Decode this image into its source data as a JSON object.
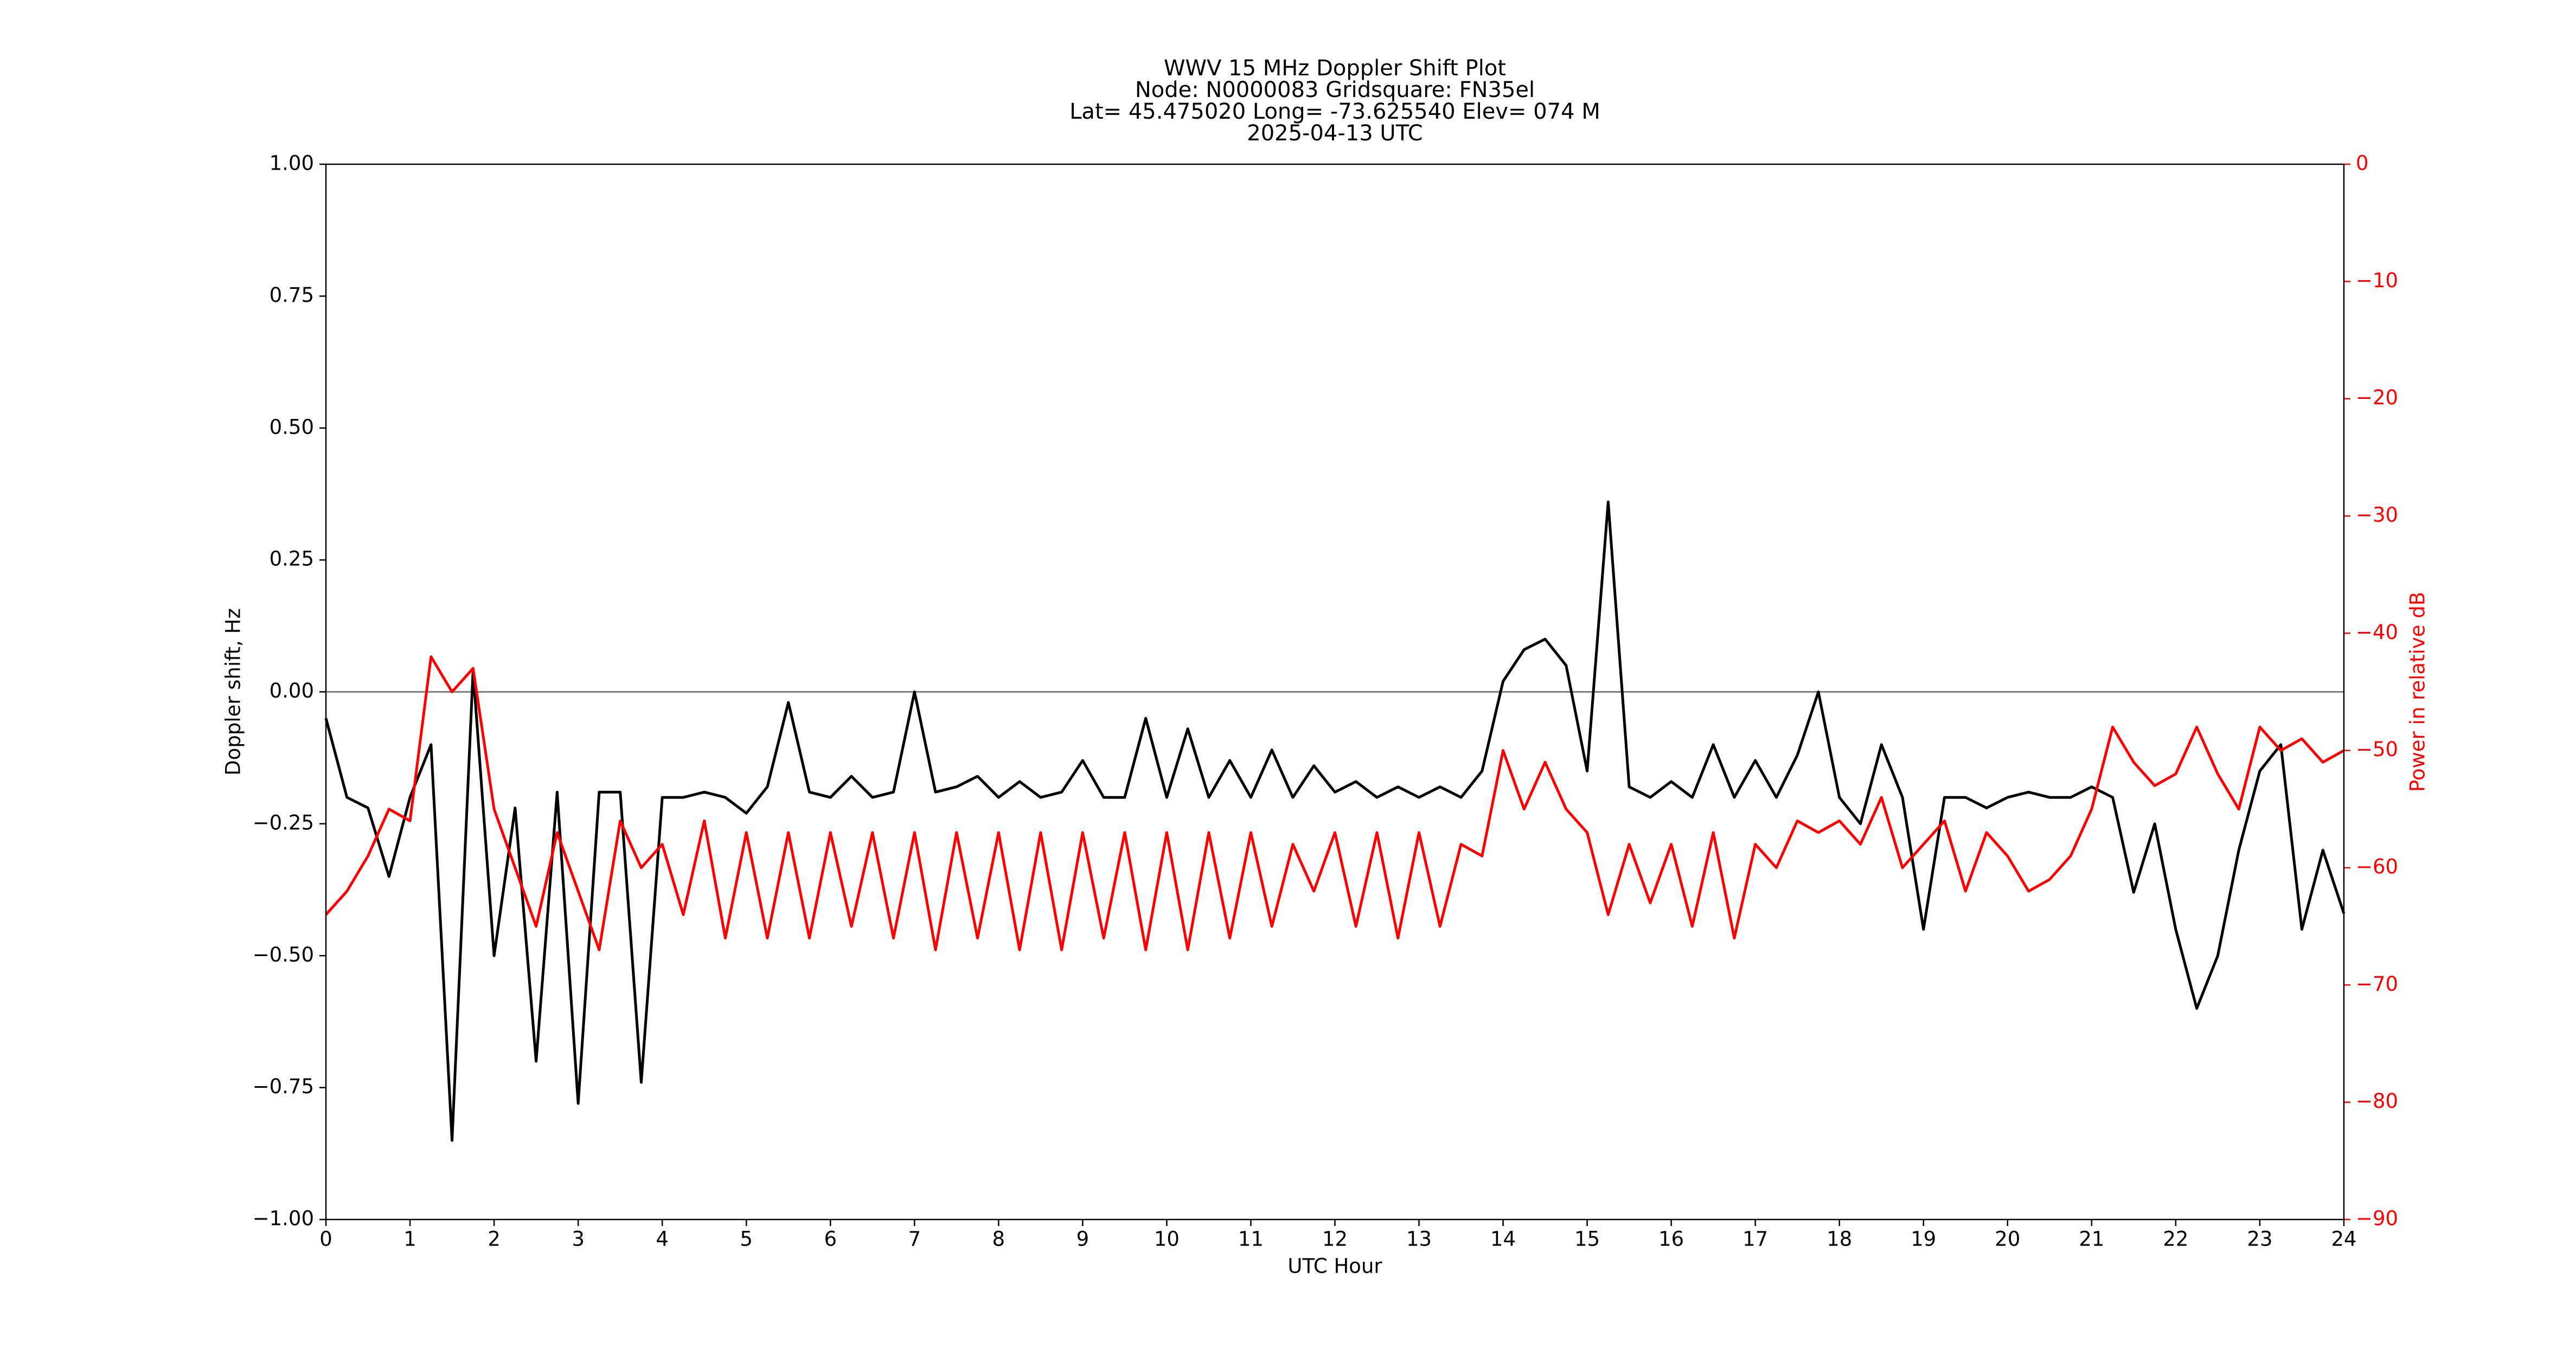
{
  "chart_data": {
    "type": "line",
    "title": [
      "WWV 15 MHz Doppler Shift Plot",
      "Node:  N0000083     Gridsquare:  FN35el",
      "Lat= 45.475020    Long= -73.625540    Elev= 074 M",
      "2025-04-13  UTC"
    ],
    "x_label": "UTC Hour",
    "y_label": "Doppler shift, Hz",
    "y2_label": "Power in relative dB",
    "y2_color": "#ff0000",
    "reference_line": 0,
    "reference_color": "#808080",
    "x": [
      0,
      0.25,
      0.5,
      0.75,
      1,
      1.25,
      1.5,
      1.75,
      2,
      2.25,
      2.5,
      2.75,
      3,
      3.25,
      3.5,
      3.75,
      4,
      4.25,
      4.5,
      4.75,
      5,
      5.25,
      5.5,
      5.75,
      6,
      6.25,
      6.5,
      6.75,
      7,
      7.25,
      7.5,
      7.75,
      8,
      8.25,
      8.5,
      8.75,
      9,
      9.25,
      9.5,
      9.75,
      10,
      10.25,
      10.5,
      10.75,
      11,
      11.25,
      11.5,
      11.75,
      12,
      12.25,
      12.5,
      12.75,
      13,
      13.25,
      13.5,
      13.75,
      14,
      14.25,
      14.5,
      14.75,
      15,
      15.25,
      15.5,
      15.75,
      16,
      16.25,
      16.5,
      16.75,
      17,
      17.25,
      17.5,
      17.75,
      18,
      18.25,
      18.5,
      18.75,
      19,
      19.25,
      19.5,
      19.75,
      20,
      20.25,
      20.5,
      20.75,
      21,
      21.25,
      21.5,
      21.75,
      22,
      22.25,
      22.5,
      22.75,
      23,
      23.25,
      23.5,
      23.75,
      24
    ],
    "series": [
      {
        "color": "#000000",
        "values": [
          -0.05,
          -0.2,
          -0.22,
          -0.35,
          -0.2,
          -0.1,
          -0.85,
          0.04,
          -0.5,
          -0.22,
          -0.7,
          -0.19,
          -0.78,
          -0.19,
          -0.19,
          -0.74,
          -0.2,
          -0.2,
          -0.19,
          -0.2,
          -0.23,
          -0.18,
          -0.02,
          -0.19,
          -0.2,
          -0.16,
          -0.2,
          -0.19,
          0.0,
          -0.19,
          -0.18,
          -0.16,
          -0.2,
          -0.17,
          -0.2,
          -0.19,
          -0.13,
          -0.2,
          -0.2,
          -0.05,
          -0.2,
          -0.07,
          -0.2,
          -0.13,
          -0.2,
          -0.11,
          -0.2,
          -0.14,
          -0.19,
          -0.17,
          -0.2,
          -0.18,
          -0.2,
          -0.18,
          -0.2,
          -0.15,
          0.02,
          0.08,
          0.1,
          0.05,
          -0.15,
          0.36,
          -0.18,
          -0.2,
          -0.17,
          -0.2,
          -0.1,
          -0.2,
          -0.13,
          -0.2,
          -0.12,
          0.0,
          -0.2,
          -0.25,
          -0.1,
          -0.2,
          -0.45,
          -0.2,
          -0.2,
          -0.22,
          -0.2,
          -0.19,
          -0.2,
          -0.2,
          -0.18,
          -0.2,
          -0.38,
          -0.25,
          -0.45,
          -0.6,
          -0.5,
          -0.3,
          -0.15,
          -0.1,
          -0.45,
          -0.3,
          -0.42
        ]
      },
      {
        "color": "#ff0000",
        "axis": "y2",
        "values": [
          -64,
          -62,
          -59,
          -55,
          -56,
          -42,
          -45,
          -43,
          -55,
          -60,
          -65,
          -57,
          -62,
          -67,
          -56,
          -60,
          -58,
          -64,
          -56,
          -66,
          -57,
          -66,
          -57,
          -66,
          -57,
          -65,
          -57,
          -66,
          -57,
          -67,
          -57,
          -66,
          -57,
          -67,
          -57,
          -67,
          -57,
          -66,
          -57,
          -67,
          -57,
          -67,
          -57,
          -66,
          -57,
          -65,
          -58,
          -62,
          -57,
          -65,
          -57,
          -66,
          -57,
          -65,
          -58,
          -59,
          -50,
          -55,
          -51,
          -55,
          -57,
          -64,
          -58,
          -63,
          -58,
          -65,
          -57,
          -66,
          -58,
          -60,
          -56,
          -57,
          -56,
          -58,
          -54,
          -60,
          -58,
          -56,
          -62,
          -57,
          -59,
          -62,
          -61,
          -59,
          -55,
          -48,
          -51,
          -53,
          -52,
          -48,
          -52,
          -55,
          -48,
          -50,
          -49,
          -51,
          -50
        ]
      }
    ],
    "xlim": [
      0,
      24
    ],
    "xticks": [
      0,
      1,
      2,
      3,
      4,
      5,
      6,
      7,
      8,
      9,
      10,
      11,
      12,
      13,
      14,
      15,
      16,
      17,
      18,
      19,
      20,
      21,
      22,
      23,
      24
    ],
    "ylim": [
      -1,
      1
    ],
    "yticks": [
      {
        "value": -1,
        "label": "−1.00"
      },
      {
        "value": -0.75,
        "label": "−0.75"
      },
      {
        "value": -0.5,
        "label": "−0.50"
      },
      {
        "value": -0.25,
        "label": "−0.25"
      },
      {
        "value": 0,
        "label": "0.00"
      },
      {
        "value": 0.25,
        "label": "0.25"
      },
      {
        "value": 0.5,
        "label": "0.50"
      },
      {
        "value": 0.75,
        "label": "0.75"
      },
      {
        "value": 1,
        "label": "1.00"
      }
    ],
    "y2lim": [
      -90,
      0
    ],
    "y2ticks": [
      {
        "value": -90,
        "label": "−90"
      },
      {
        "value": -80,
        "label": "−80"
      },
      {
        "value": -70,
        "label": "−70"
      },
      {
        "value": -60,
        "label": "−60"
      },
      {
        "value": -50,
        "label": "−50"
      },
      {
        "value": -40,
        "label": "−40"
      },
      {
        "value": -30,
        "label": "−30"
      },
      {
        "value": -20,
        "label": "−20"
      },
      {
        "value": -10,
        "label": "−10"
      },
      0
    ],
    "grid": false
  }
}
